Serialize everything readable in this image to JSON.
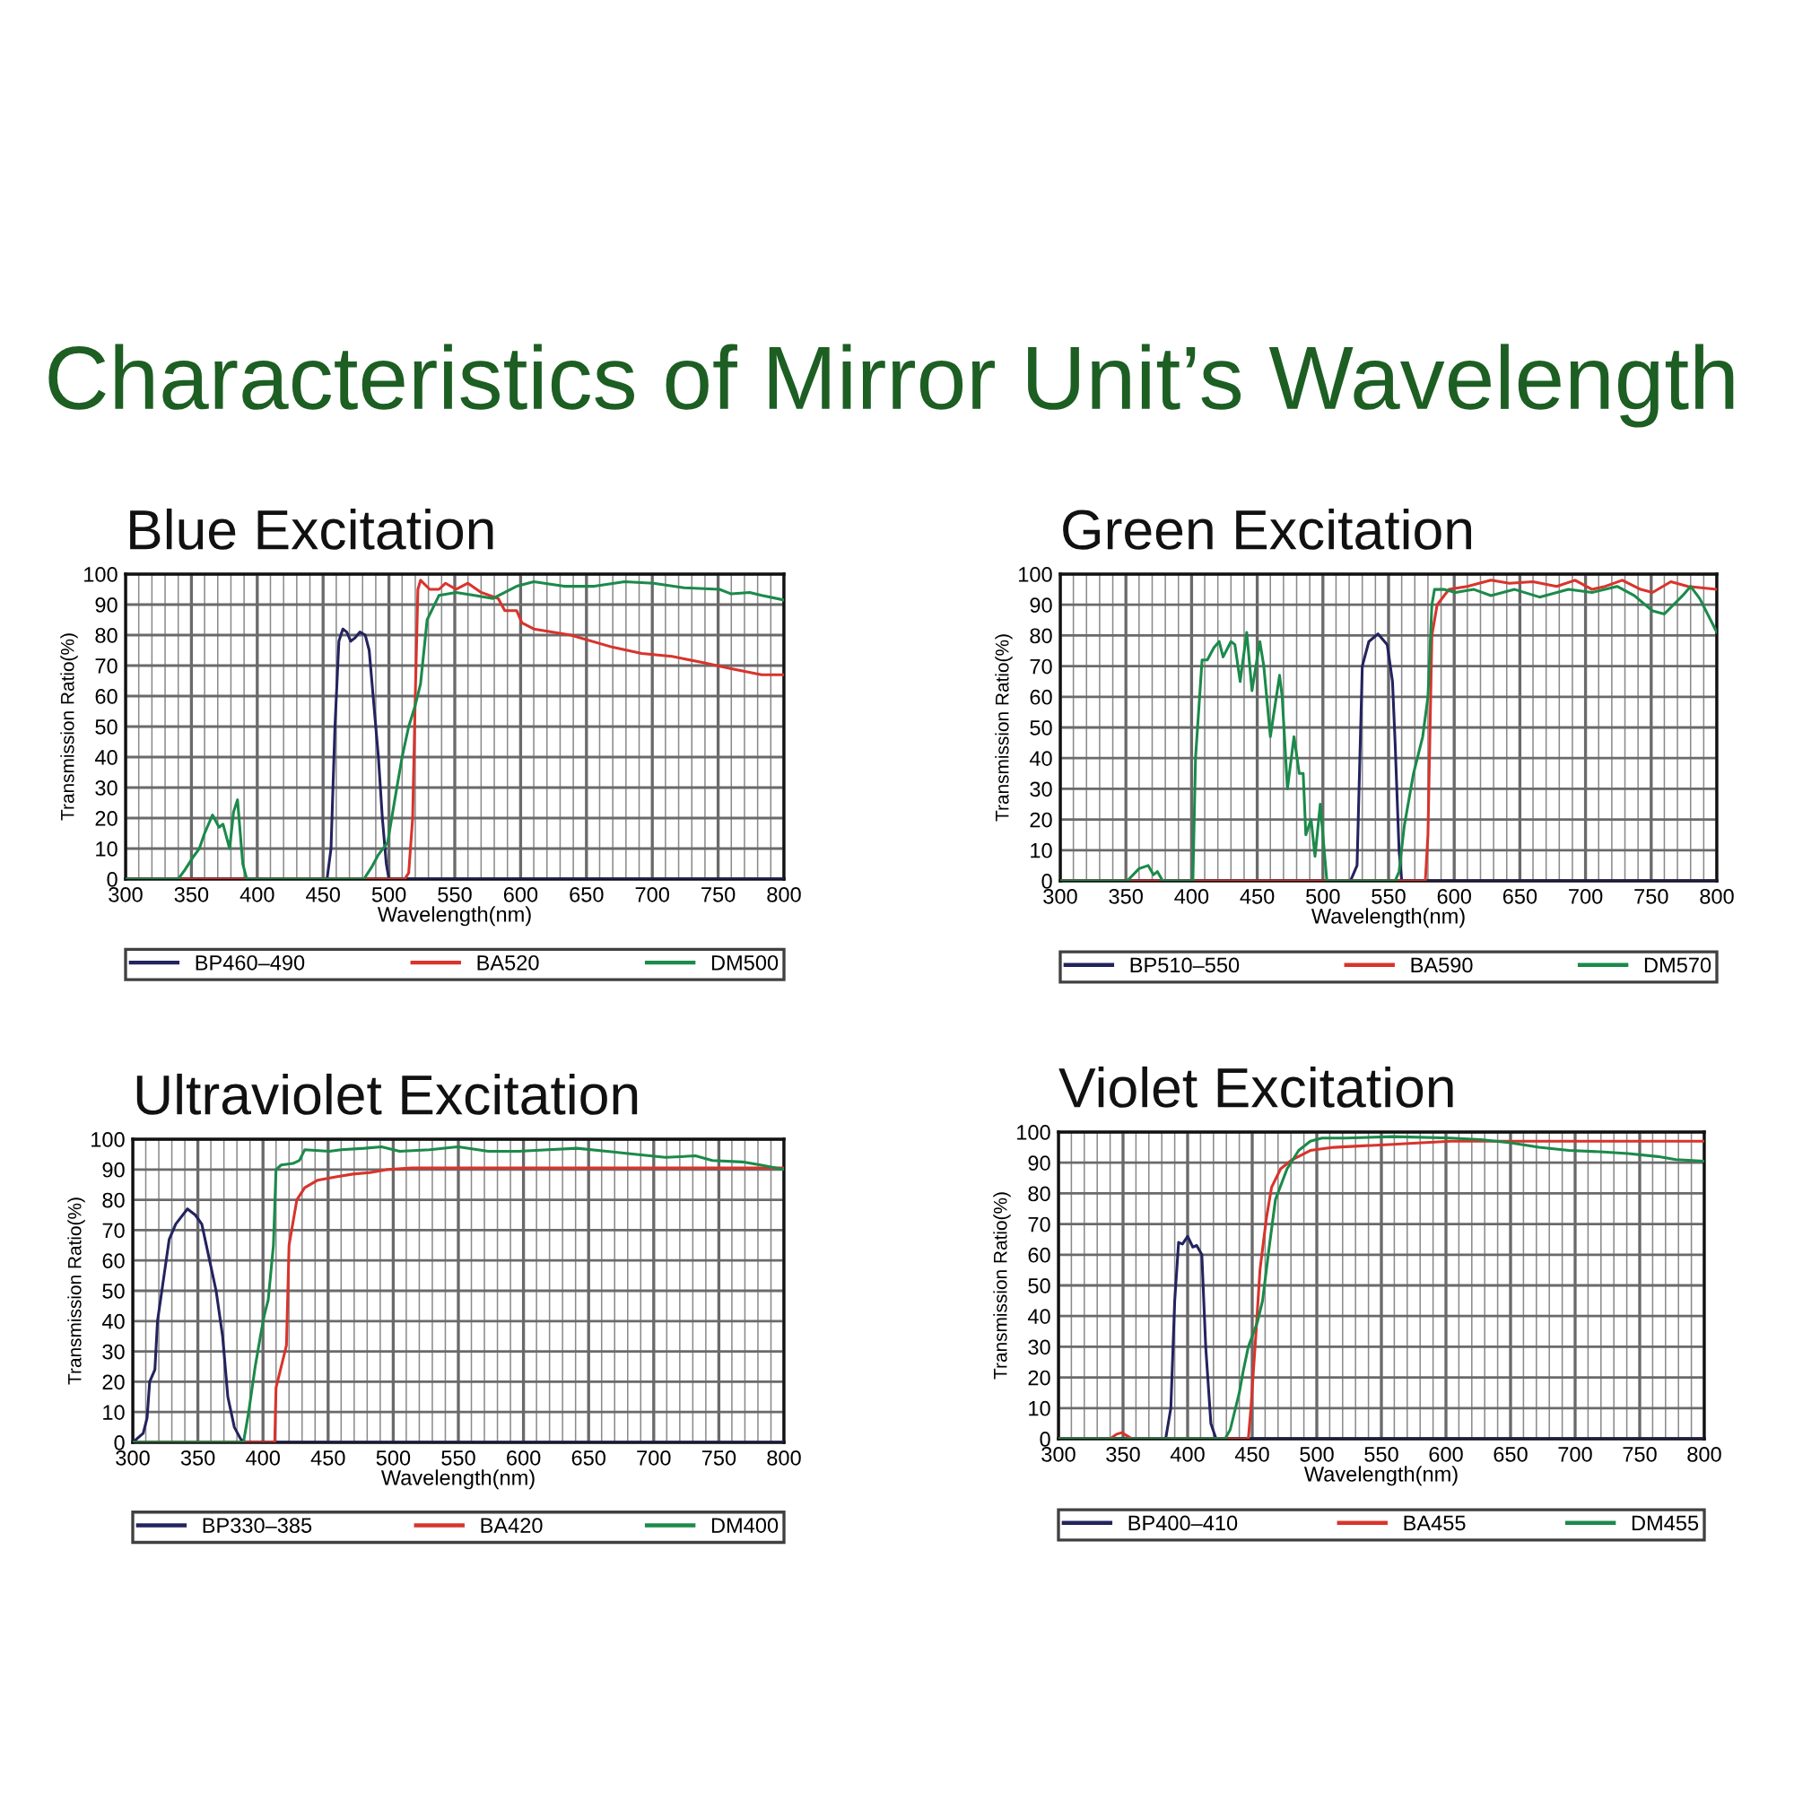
{
  "chart_data": [
    {
      "type": "line",
      "title": "Blue Excitation",
      "annotations": [
        "Characteristics of Mirror Unit’s Wavelength"
      ],
      "xlabel": "Wavelength(nm)",
      "ylabel": "Transmission Ratio(%)",
      "xlim": [
        300,
        800
      ],
      "ylim": [
        0,
        100
      ],
      "xticks": [
        300,
        {
          "value": 310,
          "label": null
        },
        {
          "value": 320,
          "label": null
        },
        {
          "value": 330,
          "label": null
        },
        {
          "value": 340,
          "label": null
        },
        350,
        {
          "value": 360,
          "label": null
        },
        {
          "value": 370,
          "label": null
        },
        {
          "value": 380,
          "label": null
        },
        {
          "value": 390,
          "label": null
        },
        400,
        {
          "value": 410,
          "label": null
        },
        {
          "value": 420,
          "label": null
        },
        {
          "value": 430,
          "label": null
        },
        {
          "value": 440,
          "label": null
        },
        450,
        {
          "value": 460,
          "label": null
        },
        {
          "value": 470,
          "label": null
        },
        {
          "value": 480,
          "label": null
        },
        {
          "value": 490,
          "label": null
        },
        500,
        {
          "value": 510,
          "label": null
        },
        {
          "value": 520,
          "label": null
        },
        {
          "value": 530,
          "label": null
        },
        {
          "value": 540,
          "label": null
        },
        550,
        {
          "value": 560,
          "label": null
        },
        {
          "value": 570,
          "label": null
        },
        {
          "value": 580,
          "label": null
        },
        {
          "value": 590,
          "label": null
        },
        600,
        {
          "value": 610,
          "label": null
        },
        {
          "value": 620,
          "label": null
        },
        {
          "value": 630,
          "label": null
        },
        {
          "value": 640,
          "label": null
        },
        650,
        {
          "value": 660,
          "label": null
        },
        {
          "value": 670,
          "label": null
        },
        {
          "value": 680,
          "label": null
        },
        {
          "value": 690,
          "label": null
        },
        700,
        {
          "value": 710,
          "label": null
        },
        {
          "value": 720,
          "label": null
        },
        {
          "value": 730,
          "label": null
        },
        {
          "value": 740,
          "label": null
        },
        750,
        {
          "value": 760,
          "label": null
        },
        {
          "value": 770,
          "label": null
        },
        {
          "value": 780,
          "label": null
        },
        {
          "value": 790,
          "label": null
        },
        800
      ],
      "yticks": [
        0,
        10,
        20,
        30,
        40,
        50,
        60,
        70,
        80,
        90,
        100
      ],
      "grid": true,
      "legend": "bottom",
      "series": [
        {
          "name": "BP460–490",
          "color": "#23235f",
          "x": [
            300,
            453,
            456,
            459,
            462,
            465,
            468,
            471,
            474,
            478,
            482,
            485,
            488,
            492,
            495,
            498,
            500,
            800
          ],
          "values": [
            0,
            0,
            10,
            50,
            78,
            82,
            81,
            78,
            79,
            81,
            80,
            75,
            60,
            40,
            20,
            5,
            0,
            0
          ]
        },
        {
          "name": "BA520",
          "color": "#d8342c",
          "x": [
            300,
            512,
            515,
            518,
            520,
            522,
            524,
            531,
            538,
            543,
            551,
            560,
            570,
            583,
            588,
            597,
            601,
            610,
            638,
            670,
            692,
            715,
            738,
            760,
            783,
            800
          ],
          "values": [
            0,
            0,
            2,
            20,
            60,
            95,
            98,
            95,
            95,
            97,
            95,
            97,
            94,
            92,
            88,
            88,
            84,
            82,
            80,
            76,
            74,
            73,
            71,
            69,
            67,
            67
          ]
        },
        {
          "name": "DM500",
          "color": "#1b8a4a",
          "x": [
            300,
            340,
            345,
            351,
            356,
            360,
            366,
            371,
            374,
            379,
            382,
            385,
            389,
            392,
            481,
            487,
            492,
            499,
            506,
            510,
            515,
            520,
            524,
            529,
            538,
            551,
            565,
            579,
            597,
            610,
            633,
            656,
            679,
            701,
            724,
            751,
            760,
            774,
            783,
            800
          ],
          "values": [
            0,
            0,
            3,
            7,
            10,
            15,
            21,
            17,
            18,
            10,
            22,
            26,
            5,
            0,
            0,
            4,
            8,
            12,
            30,
            40,
            50,
            57,
            64,
            85,
            93,
            94,
            93,
            92,
            96,
            97.5,
            96,
            96,
            97.5,
            97,
            95.5,
            95,
            93.5,
            94,
            93,
            91.5
          ]
        }
      ]
    },
    {
      "type": "line",
      "title": "Green Excitation",
      "xlabel": "Wavelength(nm)",
      "ylabel": "Transmission Ratio(%)",
      "xlim": [
        300,
        800
      ],
      "ylim": [
        0,
        100
      ],
      "xticks": [
        300,
        {
          "value": 310,
          "label": null
        },
        {
          "value": 320,
          "label": null
        },
        {
          "value": 330,
          "label": null
        },
        {
          "value": 340,
          "label": null
        },
        350,
        {
          "value": 360,
          "label": null
        },
        {
          "value": 370,
          "label": null
        },
        {
          "value": 380,
          "label": null
        },
        {
          "value": 390,
          "label": null
        },
        400,
        {
          "value": 410,
          "label": null
        },
        {
          "value": 420,
          "label": null
        },
        {
          "value": 430,
          "label": null
        },
        {
          "value": 440,
          "label": null
        },
        450,
        {
          "value": 460,
          "label": null
        },
        {
          "value": 470,
          "label": null
        },
        {
          "value": 480,
          "label": null
        },
        {
          "value": 490,
          "label": null
        },
        500,
        {
          "value": 510,
          "label": null
        },
        {
          "value": 520,
          "label": null
        },
        {
          "value": 530,
          "label": null
        },
        {
          "value": 540,
          "label": null
        },
        550,
        {
          "value": 560,
          "label": null
        },
        {
          "value": 570,
          "label": null
        },
        {
          "value": 580,
          "label": null
        },
        {
          "value": 590,
          "label": null
        },
        600,
        {
          "value": 610,
          "label": null
        },
        {
          "value": 620,
          "label": null
        },
        {
          "value": 630,
          "label": null
        },
        {
          "value": 640,
          "label": null
        },
        650,
        {
          "value": 660,
          "label": null
        },
        {
          "value": 670,
          "label": null
        },
        {
          "value": 680,
          "label": null
        },
        {
          "value": 690,
          "label": null
        },
        700,
        {
          "value": 710,
          "label": null
        },
        {
          "value": 720,
          "label": null
        },
        {
          "value": 730,
          "label": null
        },
        {
          "value": 740,
          "label": null
        },
        750,
        {
          "value": 760,
          "label": null
        },
        {
          "value": 770,
          "label": null
        },
        {
          "value": 780,
          "label": null
        },
        {
          "value": 790,
          "label": null
        },
        800
      ],
      "yticks": [
        0,
        10,
        20,
        30,
        40,
        50,
        60,
        70,
        80,
        90,
        100
      ],
      "grid": true,
      "legend": "bottom",
      "series": [
        {
          "name": "BP510–550",
          "color": "#23235f",
          "x": [
            300,
            521,
            526,
            530,
            535,
            542,
            549,
            553,
            555,
            558,
            560,
            800
          ],
          "values": [
            0,
            0,
            5,
            70,
            78,
            80.5,
            77,
            65,
            45,
            10,
            0,
            0
          ]
        },
        {
          "name": "BA590",
          "color": "#d8342c",
          "x": [
            300,
            578,
            580,
            583,
            587,
            596,
            610,
            628,
            642,
            660,
            678,
            692,
            705,
            715,
            728,
            742,
            751,
            765,
            778,
            800
          ],
          "values": [
            0,
            0,
            15,
            80,
            90,
            95,
            96,
            98,
            97,
            97.5,
            96,
            98,
            95,
            96,
            98,
            95,
            94,
            97.5,
            96,
            95
          ]
        },
        {
          "name": "DM570",
          "color": "#1b8a4a",
          "x": [
            300,
            351,
            360,
            367,
            371,
            374,
            378,
            401,
            403,
            408,
            412,
            417,
            421,
            424,
            430,
            433,
            437,
            442,
            446,
            452,
            455,
            460,
            467,
            469,
            473,
            478,
            482,
            485,
            487,
            491,
            494,
            498,
            501,
            503,
            555,
            558,
            562,
            569,
            576,
            580,
            583,
            585,
            592,
            601,
            615,
            628,
            646,
            665,
            687,
            705,
            724,
            737,
            751,
            760,
            774,
            780,
            787,
            800
          ],
          "values": [
            0,
            0,
            4,
            5,
            2,
            3,
            0,
            0,
            40,
            72,
            72,
            76,
            78,
            73,
            78,
            77,
            65,
            81,
            62,
            78,
            70,
            47,
            67,
            60,
            30,
            47,
            35,
            35,
            15,
            20,
            8,
            25,
            10,
            0,
            0,
            3,
            18,
            35,
            47,
            60,
            90,
            95,
            95,
            94,
            95,
            93,
            95,
            92.5,
            95,
            94,
            96,
            93,
            88,
            87,
            93,
            96,
            92,
            81
          ]
        }
      ]
    },
    {
      "type": "line",
      "title": "Ultraviolet Excitation",
      "xlabel": "Wavelength(nm)",
      "ylabel": "Transmission Ratio(%)",
      "xlim": [
        300,
        800
      ],
      "ylim": [
        0,
        100
      ],
      "xticks": [
        300,
        {
          "value": 310,
          "label": null
        },
        {
          "value": 320,
          "label": null
        },
        {
          "value": 330,
          "label": null
        },
        {
          "value": 340,
          "label": null
        },
        350,
        {
          "value": 360,
          "label": null
        },
        {
          "value": 370,
          "label": null
        },
        {
          "value": 380,
          "label": null
        },
        {
          "value": 390,
          "label": null
        },
        400,
        {
          "value": 410,
          "label": null
        },
        {
          "value": 420,
          "label": null
        },
        {
          "value": 430,
          "label": null
        },
        {
          "value": 440,
          "label": null
        },
        450,
        {
          "value": 460,
          "label": null
        },
        {
          "value": 470,
          "label": null
        },
        {
          "value": 480,
          "label": null
        },
        {
          "value": 490,
          "label": null
        },
        500,
        {
          "value": 510,
          "label": null
        },
        {
          "value": 520,
          "label": null
        },
        {
          "value": 530,
          "label": null
        },
        {
          "value": 540,
          "label": null
        },
        550,
        {
          "value": 560,
          "label": null
        },
        {
          "value": 570,
          "label": null
        },
        {
          "value": 580,
          "label": null
        },
        {
          "value": 590,
          "label": null
        },
        600,
        {
          "value": 610,
          "label": null
        },
        {
          "value": 620,
          "label": null
        },
        {
          "value": 630,
          "label": null
        },
        {
          "value": 640,
          "label": null
        },
        650,
        {
          "value": 660,
          "label": null
        },
        {
          "value": 670,
          "label": null
        },
        {
          "value": 680,
          "label": null
        },
        {
          "value": 690,
          "label": null
        },
        700,
        {
          "value": 710,
          "label": null
        },
        {
          "value": 720,
          "label": null
        },
        {
          "value": 730,
          "label": null
        },
        {
          "value": 740,
          "label": null
        },
        750,
        {
          "value": 760,
          "label": null
        },
        {
          "value": 770,
          "label": null
        },
        {
          "value": 780,
          "label": null
        },
        {
          "value": 790,
          "label": null
        },
        800
      ],
      "yticks": [
        0,
        10,
        20,
        30,
        40,
        50,
        60,
        70,
        80,
        90,
        100
      ],
      "grid": true,
      "legend": "bottom",
      "series": [
        {
          "name": "BP330–385",
          "color": "#23235f",
          "x": [
            300,
            308,
            311,
            313,
            317,
            319,
            324,
            328,
            333,
            342,
            348,
            353,
            358,
            364,
            369,
            373,
            378,
            383,
            387,
            800
          ],
          "values": [
            0,
            3,
            8,
            20,
            24,
            40,
            55,
            67,
            72,
            77,
            75,
            72,
            62,
            50,
            35,
            15,
            5,
            1,
            0,
            0
          ]
        },
        {
          "name": "BA420",
          "color": "#d8342c",
          "x": [
            300,
            409,
            410,
            414,
            418,
            420,
            426,
            432,
            442,
            455,
            469,
            482,
            496,
            514,
            800
          ],
          "values": [
            0,
            0,
            18,
            25,
            32,
            65,
            80,
            84,
            86.5,
            87.5,
            88.5,
            89,
            90,
            90.5,
            90.5
          ]
        },
        {
          "name": "DM400",
          "color": "#1b8a4a",
          "x": [
            300,
            385,
            389,
            394,
            398,
            401,
            404,
            408,
            410,
            414,
            423,
            428,
            432,
            451,
            460,
            478,
            491,
            505,
            528,
            550,
            573,
            596,
            619,
            641,
            664,
            687,
            709,
            732,
            745,
            768,
            782,
            800
          ],
          "values": [
            0,
            0,
            10,
            25,
            35,
            42,
            47,
            65,
            90,
            91.5,
            92,
            93,
            96.5,
            96,
            96.5,
            97,
            97.5,
            96,
            96.5,
            97.5,
            96,
            96,
            96.5,
            97,
            96,
            95,
            94,
            94.5,
            93,
            92.5,
            91.5,
            90
          ]
        }
      ]
    },
    {
      "type": "line",
      "title": "Violet Excitation",
      "xlabel": "Wavelength(nm)",
      "ylabel": "Transmission Ratio(%)",
      "xlim": [
        300,
        800
      ],
      "ylim": [
        0,
        100
      ],
      "xticks": [
        300,
        {
          "value": 310,
          "label": null
        },
        {
          "value": 320,
          "label": null
        },
        {
          "value": 330,
          "label": null
        },
        {
          "value": 340,
          "label": null
        },
        350,
        {
          "value": 360,
          "label": null
        },
        {
          "value": 370,
          "label": null
        },
        {
          "value": 380,
          "label": null
        },
        {
          "value": 390,
          "label": null
        },
        400,
        {
          "value": 410,
          "label": null
        },
        {
          "value": 420,
          "label": null
        },
        {
          "value": 430,
          "label": null
        },
        {
          "value": 440,
          "label": null
        },
        450,
        {
          "value": 460,
          "label": null
        },
        {
          "value": 470,
          "label": null
        },
        {
          "value": 480,
          "label": null
        },
        {
          "value": 490,
          "label": null
        },
        500,
        {
          "value": 510,
          "label": null
        },
        {
          "value": 520,
          "label": null
        },
        {
          "value": 530,
          "label": null
        },
        {
          "value": 540,
          "label": null
        },
        550,
        {
          "value": 560,
          "label": null
        },
        {
          "value": 570,
          "label": null
        },
        {
          "value": 580,
          "label": null
        },
        {
          "value": 590,
          "label": null
        },
        600,
        {
          "value": 610,
          "label": null
        },
        {
          "value": 620,
          "label": null
        },
        {
          "value": 630,
          "label": null
        },
        {
          "value": 640,
          "label": null
        },
        650,
        {
          "value": 660,
          "label": null
        },
        {
          "value": 670,
          "label": null
        },
        {
          "value": 680,
          "label": null
        },
        {
          "value": 690,
          "label": null
        },
        700,
        {
          "value": 710,
          "label": null
        },
        {
          "value": 720,
          "label": null
        },
        {
          "value": 730,
          "label": null
        },
        {
          "value": 740,
          "label": null
        },
        750,
        {
          "value": 760,
          "label": null
        },
        {
          "value": 770,
          "label": null
        },
        {
          "value": 780,
          "label": null
        },
        {
          "value": 790,
          "label": null
        },
        800
      ],
      "yticks": [
        0,
        10,
        20,
        30,
        40,
        50,
        60,
        70,
        80,
        90,
        100
      ],
      "grid": true,
      "legend": "bottom",
      "series": [
        {
          "name": "BP400–410",
          "color": "#23235f",
          "x": [
            300,
            383,
            387,
            390,
            393,
            396,
            400,
            404,
            407,
            411,
            414,
            418,
            422,
            800
          ],
          "values": [
            0,
            0,
            10,
            45,
            64,
            63.5,
            66,
            62.5,
            63,
            60,
            30,
            5,
            0,
            0
          ]
        },
        {
          "name": "BA455",
          "color": "#d8342c",
          "x": [
            300,
            340,
            345,
            349,
            353,
            357,
            447,
            449,
            453,
            456,
            461,
            465,
            472,
            481,
            495,
            513,
            536,
            559,
            581,
            604,
            800
          ],
          "values": [
            0,
            0,
            1.5,
            2,
            1,
            0,
            0,
            10,
            35,
            55,
            72,
            82,
            88,
            91,
            94,
            95,
            95.5,
            96,
            96.5,
            97,
            97
          ]
        },
        {
          "name": "DM455",
          "color": "#1b8a4a",
          "x": [
            300,
            429,
            433,
            440,
            443,
            447,
            454,
            458,
            463,
            468,
            477,
            486,
            495,
            504,
            522,
            559,
            604,
            627,
            650,
            672,
            695,
            722,
            741,
            764,
            778,
            800
          ],
          "values": [
            0,
            0,
            3,
            15,
            22,
            30,
            38,
            45,
            62,
            78,
            88,
            94,
            97,
            98,
            98,
            98.5,
            98,
            97.5,
            96.5,
            95,
            94,
            93.5,
            93,
            92,
            91,
            90.5
          ]
        }
      ]
    }
  ]
}
